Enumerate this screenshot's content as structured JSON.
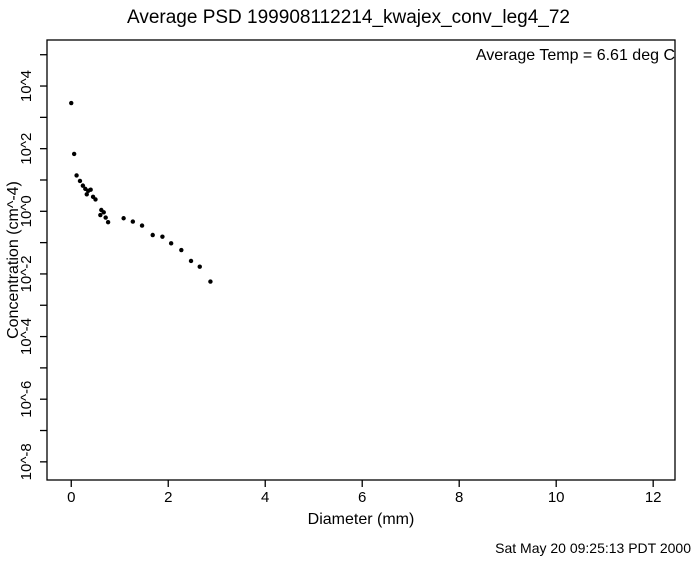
{
  "page": {
    "timestamp": "Sat May 20 09:25:13 PDT 2000"
  },
  "colors": {
    "foreground": "#000000",
    "background": "#ffffff"
  },
  "chart_data": {
    "type": "scatter",
    "title": "Average PSD 199908112214_kwajex_conv_leg4_72",
    "annotation": "Average Temp = 6.61 deg C",
    "xlabel": "Diameter (mm)",
    "ylabel": "Concentration (cm^-4)",
    "grid": false,
    "legend": "none",
    "x_axis": {
      "min": -0.5,
      "max": 12.45,
      "ticks": [
        0,
        2,
        4,
        6,
        8,
        10,
        12
      ],
      "tick_labels": [
        "0",
        "2",
        "4",
        "6",
        "8",
        "10",
        "12"
      ]
    },
    "y_axis": {
      "scale": "log10",
      "log_min": -8.58,
      "log_max": 5.47,
      "tick_exponents": [
        5,
        4,
        3,
        2,
        1,
        0,
        -1,
        -2,
        -3,
        -4,
        -5,
        -6,
        -7,
        -8
      ],
      "labels": [
        {
          "exponent": 4,
          "text": "10^4"
        },
        {
          "exponent": 2,
          "text": "10^2"
        },
        {
          "exponent": 0,
          "text": "10^0"
        },
        {
          "exponent": -2,
          "text": "10^-2"
        },
        {
          "exponent": -4,
          "text": "10^-4"
        },
        {
          "exponent": -6,
          "text": "10^-6"
        },
        {
          "exponent": -8,
          "text": "10^-8"
        }
      ]
    },
    "series": [
      {
        "name": "Average PSD",
        "marker": "filled-circle",
        "color": "#000000",
        "points": [
          [
            0.0,
            2860
          ],
          [
            0.06,
            68
          ],
          [
            0.11,
            14
          ],
          [
            0.18,
            9.3
          ],
          [
            0.24,
            6.6
          ],
          [
            0.29,
            5.2
          ],
          [
            0.32,
            3.5
          ],
          [
            0.35,
            4.5
          ],
          [
            0.4,
            4.9
          ],
          [
            0.45,
            2.9
          ],
          [
            0.5,
            2.4
          ],
          [
            0.6,
            0.76
          ],
          [
            0.62,
            1.1
          ],
          [
            0.67,
            0.93
          ],
          [
            0.71,
            0.63
          ],
          [
            0.76,
            0.45
          ],
          [
            1.08,
            0.6
          ],
          [
            1.27,
            0.47
          ],
          [
            1.46,
            0.35
          ],
          [
            1.68,
            0.175
          ],
          [
            1.88,
            0.155
          ],
          [
            2.06,
            0.095
          ],
          [
            2.27,
            0.058
          ],
          [
            2.47,
            0.026
          ],
          [
            2.65,
            0.017
          ],
          [
            2.87,
            0.0057
          ]
        ]
      }
    ]
  }
}
